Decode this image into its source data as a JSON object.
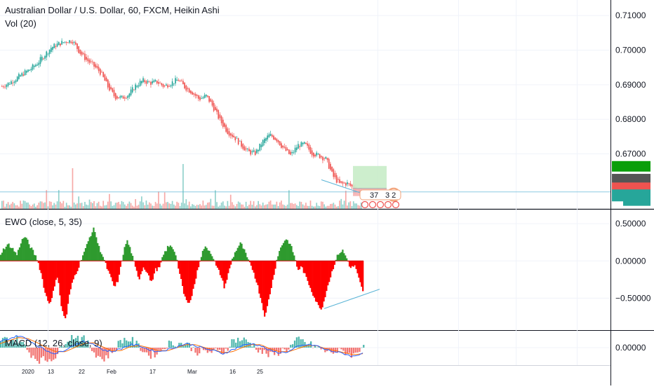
{
  "legend": {
    "main_title": "Australian Dollar / U.S. Dollar, 60, FXCM, Heikin Ashi",
    "volume_label": "Vol (20)",
    "ewo_label": "EWO (close, 5, 35)",
    "macd_label": "MACD (12, 26, close, 9)"
  },
  "badges": {
    "event_count": "37",
    "event_digits": "3 2"
  },
  "colors": {
    "up": "#26a69a",
    "down": "#ef5350",
    "ewo_up": "#2e9a2e",
    "ewo_down": "#ff0000",
    "trendline": "#5ab4d6",
    "target_zone": "#c8ecc8",
    "stop_zone": "#f6b2b2",
    "macd_line": "#2962ff",
    "signal_line": "#ff6d00"
  },
  "chart_data": [
    {
      "type": "line",
      "title": "Australian Dollar / U.S. Dollar, 60, FXCM, Heikin Ashi",
      "ylim": [
        0.6545,
        0.7145
      ],
      "y_ticks": [
        "0.71000",
        "0.70000",
        "0.69000",
        "0.68000",
        "0.67000"
      ],
      "x_ticks": [
        "2020",
        "13",
        "22",
        "Feb",
        "17",
        "Mar",
        "16",
        "25"
      ],
      "series": [
        {
          "values": [
            0.6895,
            0.6905,
            0.6918,
            0.6932,
            0.6945,
            0.6962,
            0.6985,
            0.7008,
            0.7018,
            0.7025,
            0.7028,
            0.6995,
            0.6972,
            0.6955,
            0.6935,
            0.6895,
            0.6865,
            0.6862,
            0.6872,
            0.6898,
            0.6912,
            0.6905,
            0.6908,
            0.6895,
            0.6905,
            0.6915,
            0.6892,
            0.6878,
            0.6858,
            0.6868,
            0.6835,
            0.6795,
            0.6765,
            0.6748,
            0.6725,
            0.6705,
            0.6702,
            0.6735,
            0.6755,
            0.6742,
            0.6715,
            0.6695,
            0.6725,
            0.6728,
            0.6702,
            0.6695,
            0.6685,
            0.6635,
            0.6612,
            0.6615,
            0.66,
            0.6592
          ]
        }
      ]
    },
    {
      "type": "bar",
      "title": "Vol (20)",
      "series": [
        {
          "name": "Vol (20)",
          "values": []
        }
      ]
    },
    {
      "type": "bar",
      "title": "EWO (close, 5, 35)",
      "ylim": [
        -0.92,
        0.68
      ],
      "y_ticks": [
        "0.50000",
        "0.00000",
        "−0.50000"
      ],
      "series": [
        {
          "values": [
            0.1,
            0.18,
            0.22,
            0.16,
            0.08,
            0.26,
            0.33,
            0.22,
            0.12,
            0.02,
            -0.18,
            -0.45,
            -0.58,
            -0.4,
            -0.18,
            -0.66,
            -0.79,
            -0.42,
            -0.22,
            -0.1,
            0.06,
            0.18,
            0.34,
            0.44,
            0.2,
            0.08,
            -0.08,
            -0.22,
            -0.36,
            -0.24,
            0.08,
            0.28,
            0.14,
            -0.08,
            -0.24,
            -0.08,
            -0.14,
            -0.3,
            -0.12,
            -0.1,
            0.08,
            0.18,
            0.2,
            0.1,
            -0.18,
            -0.44,
            -0.58,
            -0.46,
            -0.22,
            0.02,
            0.18,
            0.16,
            0.08,
            -0.08,
            -0.18,
            -0.36,
            -0.16,
            0.04,
            0.16,
            0.24,
            0.12,
            -0.02,
            -0.12,
            -0.3,
            -0.52,
            -0.76,
            -0.48,
            -0.22,
            0.06,
            0.2,
            0.3,
            0.24,
            0.1,
            -0.12,
            -0.08,
            -0.22,
            -0.34,
            -0.48,
            -0.6,
            -0.64,
            -0.4,
            -0.22,
            -0.04,
            0.1,
            0.14,
            0.04,
            -0.1,
            -0.06,
            -0.24,
            -0.42
          ]
        }
      ]
    },
    {
      "type": "line",
      "title": "MACD (12, 26, close, 9)",
      "y_ticks": [
        "0.00000"
      ],
      "series": [
        {
          "name": "MACD",
          "values": [
            0.0006,
            0.0009,
            0.0012,
            0.0008,
            0.0002,
            -0.0003,
            -0.0006,
            -0.0002,
            0.0003,
            0.0006,
            0.0004,
            -0.0002,
            -0.0004,
            -0.0001,
            0.0003,
            0.0002,
            -0.0002,
            -0.0004,
            -0.0002,
            0.0001,
            0.0004,
            0.0002,
            -0.0001,
            -0.0003,
            -0.0006,
            -0.0002,
            0.0002,
            0.0004,
            0.0002,
            -0.0003,
            -0.0005,
            -0.0004,
            0.0001,
            0.0003,
            0.0002,
            -0.0002,
            -0.0004,
            -0.0006,
            -0.0009,
            -0.0005
          ]
        },
        {
          "name": "Signal",
          "values": [
            0.0004,
            0.0007,
            0.001,
            0.0009,
            0.0005,
            0.0,
            -0.0004,
            -0.0004,
            0.0,
            0.0004,
            0.0005,
            0.0001,
            -0.0003,
            -0.0003,
            0.0001,
            0.0002,
            0.0,
            -0.0003,
            -0.0003,
            0.0,
            0.0003,
            0.0003,
            0.0,
            -0.0002,
            -0.0005,
            -0.0004,
            0.0,
            0.0003,
            0.0003,
            -0.0001,
            -0.0004,
            -0.0004,
            -0.0001,
            0.0002,
            0.0002,
            -0.0001,
            -0.0003,
            -0.0005,
            -0.0007,
            -0.0006
          ]
        }
      ]
    }
  ]
}
